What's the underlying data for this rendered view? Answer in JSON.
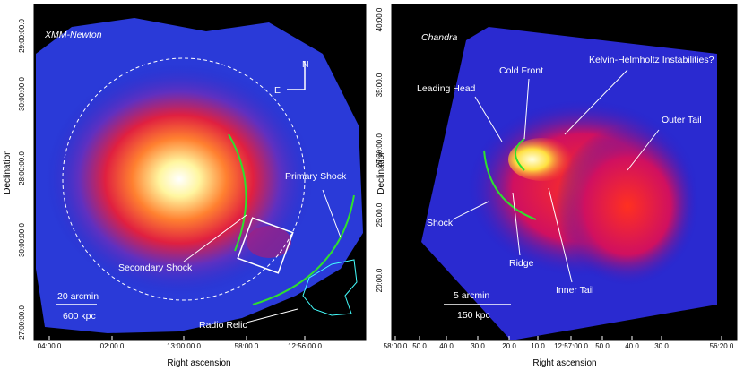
{
  "panels": [
    {
      "title": "XMM-Newton",
      "y_label": "Declination",
      "x_label": "Right ascension",
      "y_ticks": [
        "29:00:00.0",
        "30:00:00.0",
        "28:00:00.0",
        "30:00:00.0",
        "27:00:00.0"
      ],
      "x_ticks": [
        "04:00.0",
        "02:00.0",
        "13:00:00.0",
        "58:00.0",
        "12:56:00.0"
      ],
      "compass": [
        "N",
        "E"
      ],
      "annotations": [
        "Primary Shock",
        "Secondary Shock",
        "Radio Relic"
      ],
      "scale_bar": [
        "20 arcmin",
        "600 kpc"
      ]
    },
    {
      "title": "Chandra",
      "y_label": "Declination",
      "x_label": "Right ascension",
      "y_ticks": [
        "40:00.0",
        "35:00.0",
        "27:30:00.0",
        "25:00.0",
        "20:00.0"
      ],
      "x_ticks": [
        "58:00.0",
        "50.0",
        "40.0",
        "30.0",
        "20.0",
        "10.0",
        "12:57:00.0",
        "50.0",
        "40.0",
        "30.0",
        "56:20.0"
      ],
      "annotations": [
        "Cold Front",
        "Kelvin-Helmholtz Instabilities?",
        "Leading Head",
        "Outer Tail",
        "Shock",
        "Ridge",
        "Inner Tail"
      ],
      "scale_bar": [
        "5 arcmin",
        "150 kpc"
      ]
    }
  ]
}
